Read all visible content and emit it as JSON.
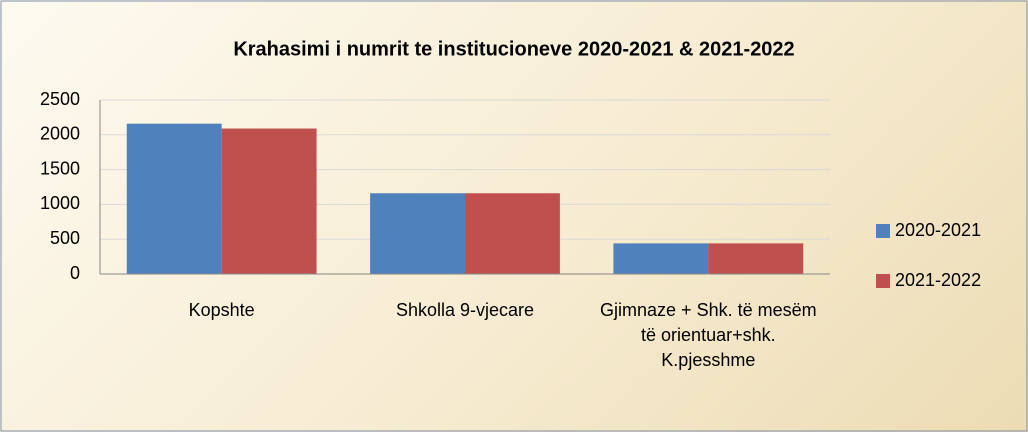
{
  "chart_data": {
    "type": "bar",
    "title": "Krahasimi i numrit te institucioneve  2020-2021 &  2021-2022",
    "categories": [
      "Kopshte",
      "Shkolla 9-vjecare",
      "Gjimnaze + Shk.  të mesëm të orientuar+shk. K.pjesshme"
    ],
    "series": [
      {
        "name": "2020-2021",
        "color": "#4f81bd",
        "values": [
          2160,
          1160,
          440
        ]
      },
      {
        "name": "2021-2022",
        "color": "#c0504d",
        "values": [
          2090,
          1160,
          440
        ]
      }
    ],
    "ylim": [
      0,
      2500
    ],
    "yticks": [
      0,
      500,
      1000,
      1500,
      2000,
      2500
    ],
    "grid": true,
    "legend": "right"
  }
}
